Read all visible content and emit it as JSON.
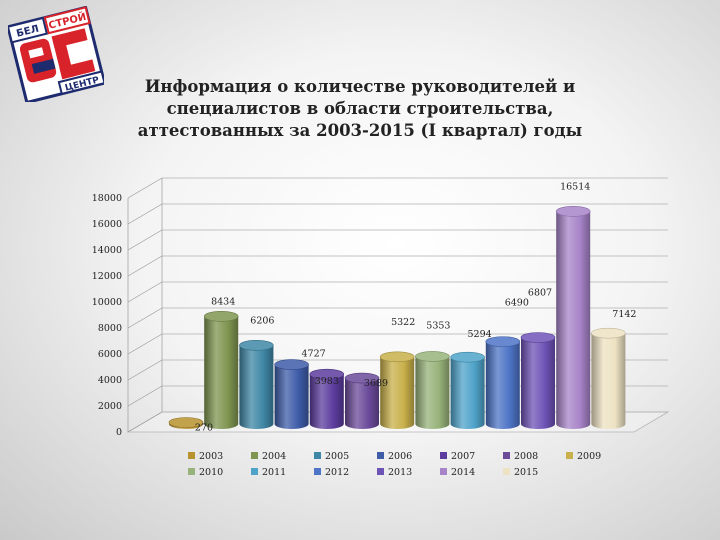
{
  "title": {
    "line1": "Информация о количестве руководителей и",
    "line2": "специалистов в области строительства,",
    "line3": "аттестованных  за 2003-2015 (I квартал) годы"
  },
  "logo": {
    "top_text": "БЕЛ",
    "right_text": "СТРОЙ",
    "bottom_text": "ЦЕНТР",
    "colors": {
      "red": "#d8232a",
      "navy": "#1e2b6e"
    }
  },
  "chart_data": {
    "type": "bar",
    "variant": "3d-cylinder",
    "categories": [
      "2003",
      "2004",
      "2005",
      "2006",
      "2007",
      "2008",
      "2009",
      "2010",
      "2011",
      "2012",
      "2013",
      "2014",
      "2015"
    ],
    "values": [
      270,
      8434,
      6206,
      4727,
      3983,
      3689,
      5322,
      5353,
      5294,
      6490,
      6807,
      16514,
      7142
    ],
    "data_labels": [
      "270",
      "8434",
      "6206",
      "4727",
      "3983",
      "3689",
      "5322",
      "5353",
      "5294",
      "6490",
      "6807",
      "16514",
      "7142"
    ],
    "colors": [
      "#b8922e",
      "#7f9550",
      "#3f87a6",
      "#3e5ca8",
      "#5c3c9e",
      "#6b4a9a",
      "#c8b04a",
      "#97b27a",
      "#4fa3c9",
      "#4d74c6",
      "#6e53b7",
      "#a784c8",
      "#ede2c2"
    ],
    "y_ticks": [
      "0",
      "2000",
      "4000",
      "6000",
      "8000",
      "10000",
      "12000",
      "14000",
      "16000",
      "18000"
    ],
    "ylim": [
      0,
      18000
    ],
    "grid": true,
    "legend_position": "bottom",
    "legend": [
      "2003",
      "2004",
      "2005",
      "2006",
      "2007",
      "2008",
      "2009",
      "2010",
      "2011",
      "2012",
      "2013",
      "2014",
      "2015"
    ]
  }
}
